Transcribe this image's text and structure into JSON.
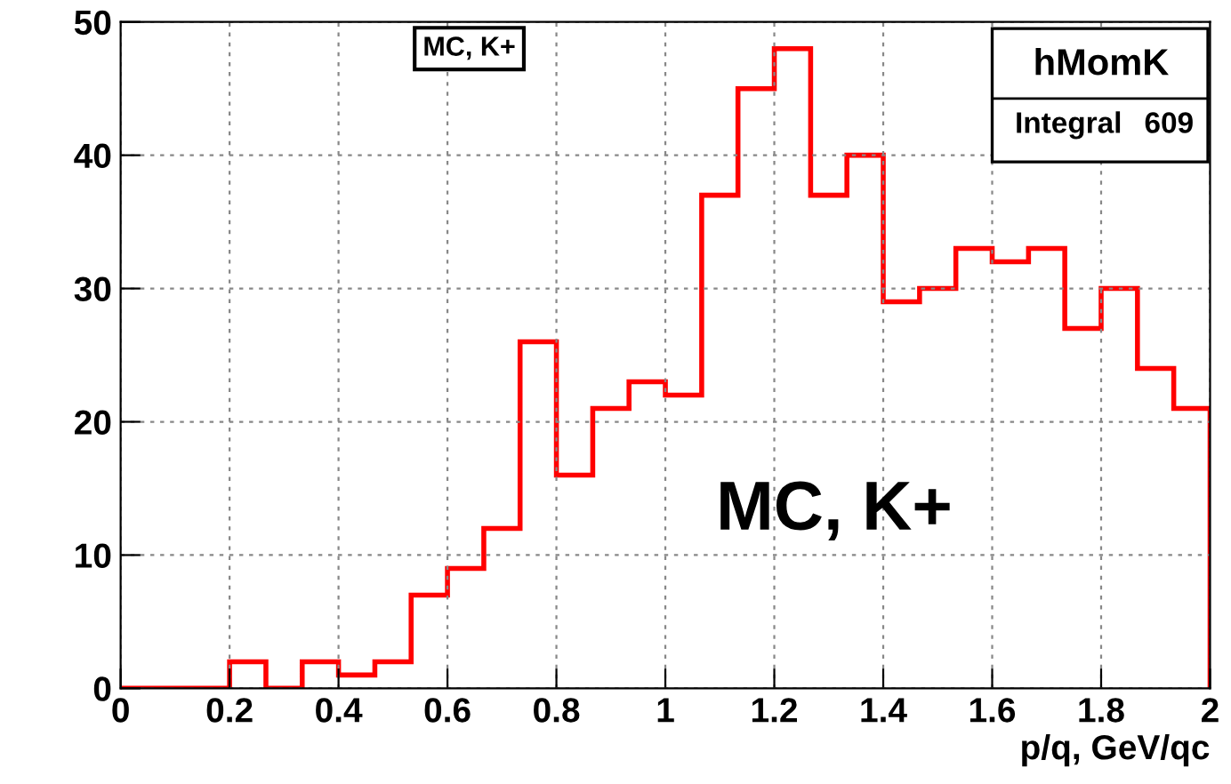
{
  "chart_data": {
    "type": "histogram",
    "xlabel": "p/q, GeV/qc",
    "bins": [
      0,
      0.0667,
      0.1333,
      0.2,
      0.2667,
      0.3333,
      0.4,
      0.4667,
      0.5333,
      0.6,
      0.6667,
      0.7333,
      0.8,
      0.8667,
      0.9333,
      1,
      1.0667,
      1.1333,
      1.2,
      1.2667,
      1.3333,
      1.4,
      1.4667,
      1.5333,
      1.6,
      1.6667,
      1.7333,
      1.8,
      1.8667,
      1.9333,
      2
    ],
    "values": [
      0,
      0,
      0,
      2,
      0,
      2,
      1,
      2,
      7,
      9,
      12,
      26,
      16,
      21,
      23,
      22,
      37,
      45,
      48,
      37,
      40,
      29,
      30,
      33,
      32,
      33,
      27,
      30,
      24,
      21
    ],
    "color": "#ff0000",
    "xlim": [
      0,
      2
    ],
    "ylim": [
      0,
      50
    ],
    "xticks": [
      0,
      0.2,
      0.4,
      0.6,
      0.8,
      1,
      1.2,
      1.4,
      1.6,
      1.8,
      2
    ],
    "yticks": [
      0,
      10,
      20,
      30,
      40,
      50
    ],
    "grid": true,
    "annotations": [
      "MC, K+",
      "hMomK",
      "Integral",
      "609",
      "MC, K+"
    ]
  }
}
